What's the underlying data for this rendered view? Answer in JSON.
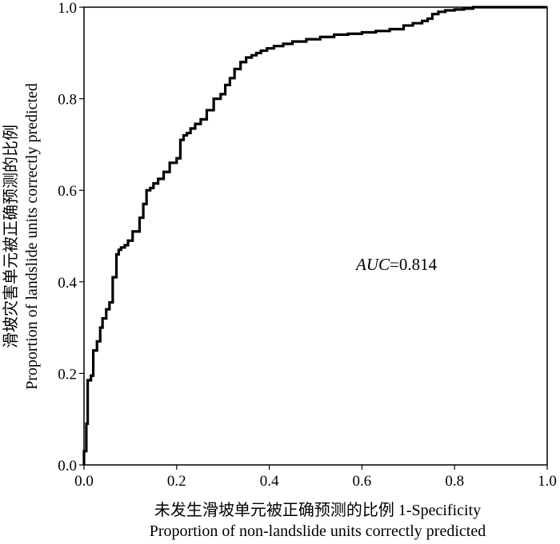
{
  "chart_data": {
    "type": "line",
    "title": "",
    "xlabel_cn": "未发生滑坡单元被正确预测的比例 1-Specificity",
    "xlabel_en": "Proportion of non-landslide units correctly predicted",
    "ylabel_cn": "滑坡灾害单元被正确预测的比例",
    "ylabel_en": "Proportion of landslide units correctly predicted",
    "xlim": [
      0,
      1
    ],
    "ylim": [
      0,
      1
    ],
    "xticks": [
      "0.0",
      "0.2",
      "0.4",
      "0.6",
      "0.8",
      "1.0"
    ],
    "yticks": [
      "0.0",
      "0.2",
      "0.4",
      "0.6",
      "0.8",
      "1.0"
    ],
    "grid": false,
    "annotation": {
      "italic": "AUC",
      "rest": "=0.814"
    },
    "series": [
      {
        "color": "#000000",
        "x": [
          0.0,
          0.005,
          0.008,
          0.015,
          0.02,
          0.028,
          0.035,
          0.04,
          0.048,
          0.055,
          0.062,
          0.07,
          0.075,
          0.08,
          0.088,
          0.095,
          0.105,
          0.12,
          0.128,
          0.135,
          0.143,
          0.15,
          0.16,
          0.172,
          0.185,
          0.2,
          0.208,
          0.215,
          0.222,
          0.23,
          0.24,
          0.252,
          0.265,
          0.28,
          0.295,
          0.305,
          0.315,
          0.325,
          0.338,
          0.35,
          0.362,
          0.372,
          0.382,
          0.395,
          0.41,
          0.43,
          0.45,
          0.48,
          0.51,
          0.54,
          0.57,
          0.6,
          0.63,
          0.66,
          0.69,
          0.71,
          0.73,
          0.742,
          0.752,
          0.765,
          0.78,
          0.8,
          0.82,
          0.84,
          0.86,
          0.9,
          0.95,
          1.0
        ],
        "y": [
          0.0,
          0.03,
          0.09,
          0.185,
          0.195,
          0.25,
          0.27,
          0.3,
          0.32,
          0.34,
          0.355,
          0.41,
          0.46,
          0.47,
          0.475,
          0.48,
          0.49,
          0.51,
          0.54,
          0.57,
          0.6,
          0.605,
          0.615,
          0.625,
          0.64,
          0.66,
          0.67,
          0.71,
          0.72,
          0.725,
          0.735,
          0.745,
          0.755,
          0.775,
          0.8,
          0.81,
          0.83,
          0.845,
          0.865,
          0.88,
          0.89,
          0.895,
          0.9,
          0.905,
          0.91,
          0.915,
          0.92,
          0.925,
          0.93,
          0.935,
          0.94,
          0.942,
          0.945,
          0.948,
          0.952,
          0.96,
          0.965,
          0.97,
          0.975,
          0.985,
          0.99,
          0.993,
          0.995,
          0.997,
          1.0,
          1.0,
          1.0,
          1.0
        ]
      }
    ]
  }
}
